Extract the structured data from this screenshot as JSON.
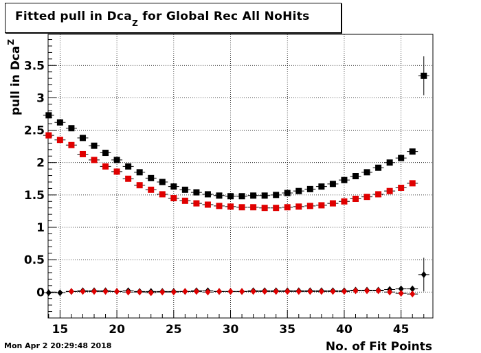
{
  "header": {
    "title_main": "Fitted pull in Dca",
    "title_sub": "Z",
    "title_rest": " for Global Rec All NoHits"
  },
  "footer": {
    "timestamp": "Mon Apr  2 20:29:48 2018"
  },
  "colors": {
    "series_black": "#000000",
    "series_red": "#e00000",
    "grid": "#000000"
  },
  "chart_data": {
    "type": "scatter",
    "title": "Fitted pull in Dca_Z for Global Rec All NoHits",
    "xlabel": "No. of Fit Points",
    "ylabel_main": "pull in Dca",
    "ylabel_sub": "Z",
    "xlim": [
      13.95,
      47.8
    ],
    "ylim": [
      -0.4,
      3.98
    ],
    "x_ticks": [
      15,
      20,
      25,
      30,
      35,
      40,
      45
    ],
    "x_tick_labels": [
      "15",
      "20",
      "25",
      "30",
      "35",
      "40",
      "45"
    ],
    "y_ticks": [
      0,
      0.5,
      1,
      1.5,
      2,
      2.5,
      3,
      3.5
    ],
    "y_tick_labels": [
      "0",
      "0.5",
      "1",
      "1.5",
      "2",
      "2.5",
      "3",
      "3.5"
    ],
    "grid": true,
    "series": [
      {
        "marker": "square",
        "color": "#000000",
        "x": [
          14,
          15,
          16,
          17,
          18,
          19,
          20,
          21,
          22,
          23,
          24,
          25,
          26,
          27,
          28,
          29,
          30,
          31,
          32,
          33,
          34,
          35,
          36,
          37,
          38,
          39,
          40,
          41,
          42,
          43,
          44,
          45,
          46,
          47
        ],
        "y": [
          2.73,
          2.62,
          2.53,
          2.38,
          2.26,
          2.15,
          2.04,
          1.94,
          1.85,
          1.76,
          1.7,
          1.63,
          1.58,
          1.54,
          1.51,
          1.49,
          1.48,
          1.48,
          1.49,
          1.49,
          1.5,
          1.53,
          1.56,
          1.59,
          1.63,
          1.67,
          1.73,
          1.79,
          1.85,
          1.92,
          2.0,
          2.07,
          2.17,
          3.34
        ],
        "yerr": [
          0.02,
          0.02,
          0.02,
          0.02,
          0.02,
          0.02,
          0.02,
          0.02,
          0.02,
          0.02,
          0.02,
          0.02,
          0.02,
          0.02,
          0.02,
          0.02,
          0.02,
          0.02,
          0.02,
          0.02,
          0.02,
          0.02,
          0.02,
          0.02,
          0.02,
          0.02,
          0.02,
          0.02,
          0.02,
          0.02,
          0.02,
          0.03,
          0.03,
          0.3
        ]
      },
      {
        "marker": "square",
        "color": "#e00000",
        "x": [
          14,
          15,
          16,
          17,
          18,
          19,
          20,
          21,
          22,
          23,
          24,
          25,
          26,
          27,
          28,
          29,
          30,
          31,
          32,
          33,
          34,
          35,
          36,
          37,
          38,
          39,
          40,
          41,
          42,
          43,
          44,
          45,
          46
        ],
        "y": [
          2.42,
          2.35,
          2.27,
          2.13,
          2.04,
          1.94,
          1.86,
          1.75,
          1.65,
          1.58,
          1.51,
          1.45,
          1.41,
          1.37,
          1.35,
          1.33,
          1.32,
          1.31,
          1.31,
          1.3,
          1.3,
          1.31,
          1.32,
          1.33,
          1.34,
          1.37,
          1.4,
          1.44,
          1.47,
          1.51,
          1.56,
          1.61,
          1.68
        ],
        "yerr": [
          0.02,
          0.02,
          0.02,
          0.02,
          0.02,
          0.02,
          0.02,
          0.02,
          0.02,
          0.02,
          0.02,
          0.02,
          0.02,
          0.02,
          0.02,
          0.02,
          0.02,
          0.02,
          0.02,
          0.02,
          0.02,
          0.02,
          0.02,
          0.02,
          0.02,
          0.02,
          0.02,
          0.02,
          0.02,
          0.02,
          0.02,
          0.02,
          0.02
        ]
      },
      {
        "marker": "diamond",
        "color": "#000000",
        "x": [
          14,
          15,
          16,
          17,
          18,
          19,
          20,
          21,
          22,
          23,
          24,
          25,
          26,
          27,
          28,
          29,
          30,
          31,
          32,
          33,
          34,
          35,
          36,
          37,
          38,
          39,
          40,
          41,
          42,
          43,
          44,
          45,
          46,
          47
        ],
        "y": [
          -0.01,
          -0.01,
          0.01,
          0.02,
          0.02,
          0.02,
          0.01,
          0.02,
          0.01,
          0.01,
          0.01,
          0.01,
          0.01,
          0.02,
          0.02,
          0.01,
          0.01,
          0.01,
          0.02,
          0.02,
          0.02,
          0.02,
          0.02,
          0.02,
          0.02,
          0.02,
          0.02,
          0.03,
          0.03,
          0.03,
          0.04,
          0.05,
          0.05,
          0.27
        ],
        "yerr": [
          0.02,
          0.02,
          0.02,
          0.02,
          0.02,
          0.02,
          0.02,
          0.02,
          0.02,
          0.02,
          0.02,
          0.02,
          0.02,
          0.02,
          0.02,
          0.02,
          0.02,
          0.02,
          0.02,
          0.02,
          0.02,
          0.02,
          0.02,
          0.02,
          0.02,
          0.02,
          0.02,
          0.02,
          0.02,
          0.02,
          0.02,
          0.02,
          0.03,
          0.26
        ]
      },
      {
        "marker": "diamond",
        "color": "#e00000",
        "x": [
          16,
          17,
          18,
          19,
          20,
          21,
          22,
          23,
          24,
          25,
          26,
          27,
          28,
          29,
          30,
          31,
          32,
          33,
          34,
          35,
          36,
          37,
          38,
          39,
          40,
          41,
          42,
          43,
          44,
          45,
          46
        ],
        "y": [
          0.01,
          0.01,
          0.01,
          0.01,
          0.01,
          0.0,
          0.0,
          -0.01,
          0.0,
          0.0,
          0.01,
          0.01,
          0.0,
          0.01,
          0.01,
          0.01,
          0.01,
          0.01,
          0.01,
          0.01,
          0.01,
          0.01,
          0.01,
          0.01,
          0.01,
          0.02,
          0.02,
          0.02,
          0.0,
          -0.02,
          -0.03
        ],
        "yerr": [
          0.02,
          0.02,
          0.02,
          0.02,
          0.02,
          0.02,
          0.02,
          0.02,
          0.02,
          0.02,
          0.02,
          0.02,
          0.02,
          0.02,
          0.02,
          0.02,
          0.02,
          0.02,
          0.02,
          0.02,
          0.02,
          0.02,
          0.02,
          0.02,
          0.02,
          0.02,
          0.02,
          0.02,
          0.02,
          0.02,
          0.02
        ]
      }
    ]
  }
}
